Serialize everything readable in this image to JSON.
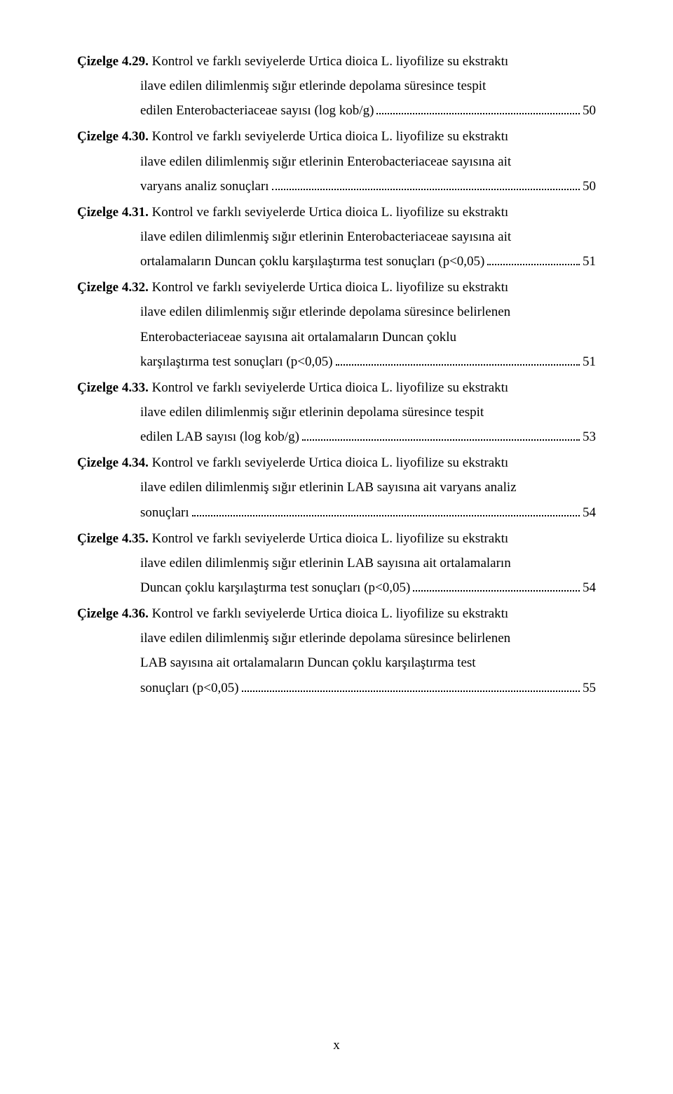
{
  "footer": {
    "roman_page": "x"
  },
  "entries": [
    {
      "label": "Çizelge 4.29.",
      "first": " Kontrol ve farklı seviyelerde Urtica dioica L. liyofilize su ekstraktı",
      "mids": [
        "ilave edilen dilimlenmiş sığır etlerinde depolama süresince tespit"
      ],
      "last": "edilen Enterobacteriaceae sayısı (log kob/g)",
      "page": "50"
    },
    {
      "label": "Çizelge 4.30.",
      "first": " Kontrol ve farklı seviyelerde Urtica dioica L. liyofilize su ekstraktı",
      "mids": [
        "ilave edilen dilimlenmiş sığır etlerinin Enterobacteriaceae sayısına ait"
      ],
      "last": "varyans analiz sonuçları",
      "page": "50"
    },
    {
      "label": "Çizelge 4.31.",
      "first": " Kontrol ve farklı seviyelerde Urtica dioica L. liyofilize su ekstraktı",
      "mids": [
        "ilave edilen dilimlenmiş sığır etlerinin Enterobacteriaceae sayısına ait"
      ],
      "last": "ortalamaların Duncan çoklu karşılaştırma test sonuçları (p<0,05)",
      "page": "51"
    },
    {
      "label": "Çizelge 4.32.",
      "first": " Kontrol ve farklı seviyelerde Urtica dioica L. liyofilize su ekstraktı",
      "mids": [
        "ilave edilen dilimlenmiş sığır etlerinde depolama süresince belirlenen",
        "Enterobacteriaceae sayısına ait ortalamaların Duncan çoklu"
      ],
      "last": "karşılaştırma test sonuçları (p<0,05)",
      "page": "51"
    },
    {
      "label": "Çizelge 4.33.",
      "first": " Kontrol ve farklı seviyelerde Urtica dioica L. liyofilize su ekstraktı",
      "mids": [
        "ilave edilen dilimlenmiş sığır etlerinin depolama süresince tespit"
      ],
      "last": "edilen LAB sayısı (log kob/g)",
      "page": "53"
    },
    {
      "label": "Çizelge 4.34.",
      "first": " Kontrol ve farklı seviyelerde Urtica dioica L. liyofilize su ekstraktı",
      "mids": [
        "ilave edilen dilimlenmiş sığır etlerinin LAB sayısına ait varyans analiz"
      ],
      "last": "sonuçları",
      "page": "54"
    },
    {
      "label": "Çizelge 4.35.",
      "first": " Kontrol ve farklı seviyelerde Urtica dioica L. liyofilize su ekstraktı",
      "mids": [
        "ilave edilen dilimlenmiş sığır etlerinin LAB sayısına ait ortalamaların"
      ],
      "last": "Duncan çoklu karşılaştırma test sonuçları (p<0,05)",
      "page": "54"
    },
    {
      "label": "Çizelge 4.36.",
      "first": " Kontrol ve farklı seviyelerde Urtica dioica L. liyofilize su ekstraktı",
      "mids": [
        "ilave edilen dilimlenmiş sığır etlerinde depolama süresince belirlenen",
        "LAB sayısına ait ortalamaların Duncan çoklu karşılaştırma test"
      ],
      "last": "sonuçları (p<0,05)",
      "page": "55"
    }
  ]
}
